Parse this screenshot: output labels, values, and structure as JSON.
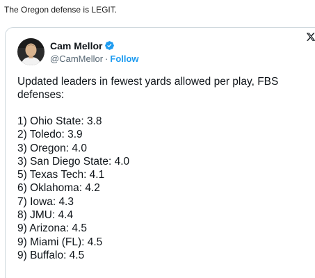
{
  "post": {
    "text": "The Oregon defense is LEGIT."
  },
  "tweet": {
    "author": {
      "display_name": "Cam Mellor",
      "handle": "@CamMellor",
      "separator": "·",
      "follow_label": "Follow",
      "verified": true,
      "verified_color": "#1d9bf0"
    },
    "intro": "Updated leaders in fewest yards allowed per play, FBS defenses:",
    "leaders": [
      "1) Ohio State: 3.8",
      "2) Toledo: 3.9",
      "3) Oregon: 4.0",
      "3) San Diego State: 4.0",
      "5) Texas Tech: 4.1",
      "6) Oklahoma: 4.2",
      "7) Iowa: 4.3",
      "8) JMU: 4.4",
      "9) Arizona: 4.5",
      "9) Miami (FL): 4.5",
      "9) Buffalo: 4.5"
    ]
  },
  "colors": {
    "link": "#1d9bf0",
    "muted": "#536471",
    "text": "#0f1419",
    "border": "#cfd9de"
  },
  "icons": {
    "verified": "verified-badge-icon",
    "more": "x-logo-icon",
    "avatar": "profile-photo"
  }
}
